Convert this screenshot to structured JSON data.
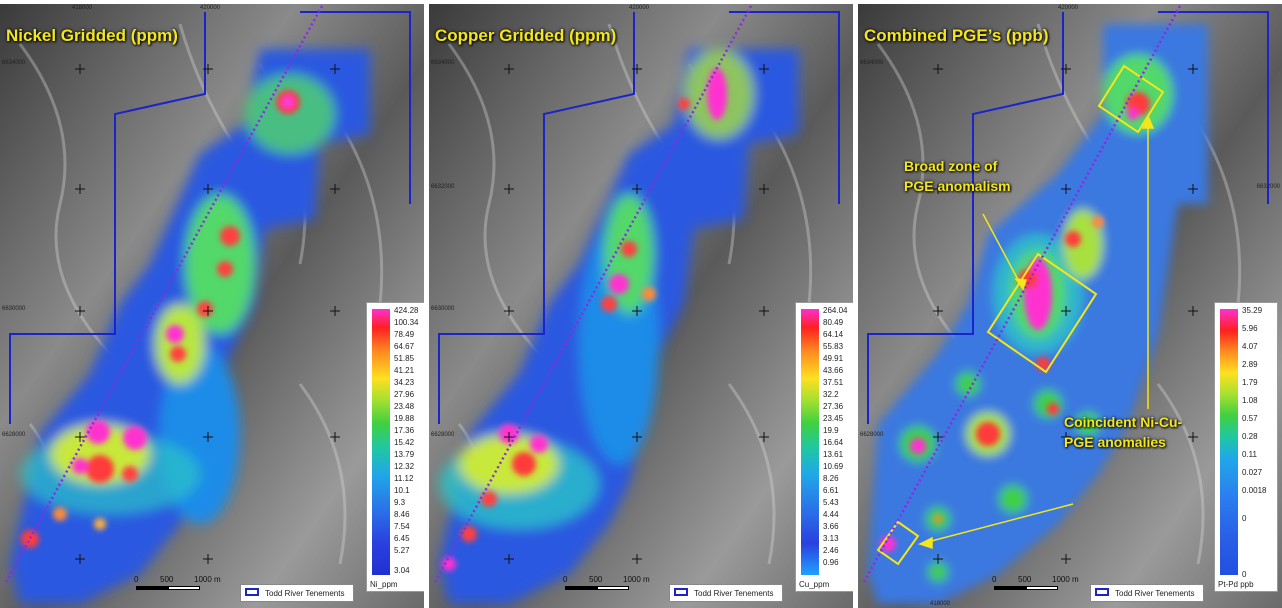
{
  "panels": [
    {
      "title": "Nickel Gridded (ppm)",
      "legend": {
        "labels": [
          "424.28",
          "100.34",
          "78.49",
          "64.67",
          "51.85",
          "41.21",
          "34.23",
          "27.96",
          "23.48",
          "19.88",
          "17.36",
          "15.42",
          "13.79",
          "12.32",
          "11.12",
          "10.1",
          "9.3",
          "8.46",
          "7.54",
          "6.45",
          "5.27",
          "3.04"
        ],
        "unit": "Ni_ppm"
      }
    },
    {
      "title": "Copper Gridded (ppm)",
      "legend": {
        "labels": [
          "264.04",
          "80.49",
          "64.14",
          "55.83",
          "49.91",
          "43.66",
          "37.51",
          "32.2",
          "27.36",
          "23.45",
          "19.9",
          "16.64",
          "13.61",
          "10.69",
          "8.26",
          "6.61",
          "5.43",
          "4.44",
          "3.66",
          "3.13",
          "2.46",
          "0.96"
        ],
        "unit": "Cu_ppm"
      }
    },
    {
      "title": "Combined PGE’s (ppb)",
      "legend": {
        "labels": [
          "35.29",
          "5.96",
          "4.07",
          "2.89",
          "1.79",
          "1.08",
          "0.57",
          "0.28",
          "0.11",
          "0.027",
          "0.0018",
          "0",
          "0"
        ],
        "unit": "Pt-Pd ppb"
      }
    }
  ],
  "common": {
    "scale_labels": [
      "0",
      "500",
      "1000 m"
    ],
    "tenements_label": "Todd River Tenements",
    "easting_labels": [
      "418000",
      "420000"
    ],
    "northing_labels": [
      "6634000",
      "6632000",
      "6630000",
      "6628000"
    ]
  },
  "annotations": {
    "broad_zone": [
      "Broad zone of",
      "PGE anomalism"
    ],
    "coincident": [
      "Coincident Ni-Cu-",
      "PGE anomalies"
    ]
  },
  "colors": {
    "title_yellow": "#f3e61a",
    "boundary_blue": "#1a24c9",
    "profile_purple": "#8a2be2",
    "box_yellow": "#f3e61a"
  }
}
